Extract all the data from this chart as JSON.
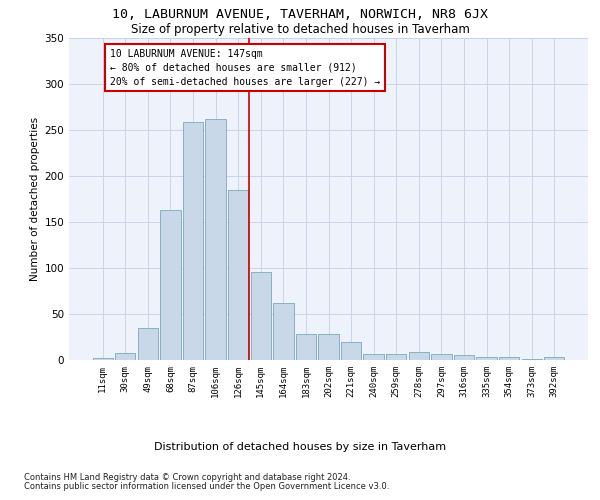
{
  "title_line1": "10, LABURNUM AVENUE, TAVERHAM, NORWICH, NR8 6JX",
  "title_line2": "Size of property relative to detached houses in Taverham",
  "xlabel": "Distribution of detached houses by size in Taverham",
  "ylabel": "Number of detached properties",
  "footnote1": "Contains HM Land Registry data © Crown copyright and database right 2024.",
  "footnote2": "Contains public sector information licensed under the Open Government Licence v3.0.",
  "bar_labels": [
    "11sqm",
    "30sqm",
    "49sqm",
    "68sqm",
    "87sqm",
    "106sqm",
    "126sqm",
    "145sqm",
    "164sqm",
    "183sqm",
    "202sqm",
    "221sqm",
    "240sqm",
    "259sqm",
    "278sqm",
    "297sqm",
    "316sqm",
    "335sqm",
    "354sqm",
    "373sqm",
    "392sqm"
  ],
  "bar_heights": [
    2,
    8,
    35,
    163,
    258,
    262,
    185,
    95,
    62,
    28,
    28,
    20,
    6,
    6,
    9,
    7,
    5,
    3,
    3,
    1,
    3
  ],
  "bar_color": "#c8d8e8",
  "bar_edge_color": "#7aaabb",
  "grid_color": "#c8d4e8",
  "background_color": "#eef2fa",
  "annotation_line1": "10 LABURNUM AVENUE: 147sqm",
  "annotation_line2": "← 80% of detached houses are smaller (912)",
  "annotation_line3": "20% of semi-detached houses are larger (227) →",
  "ref_line_x": 7,
  "ref_line_color": "#cc0000",
  "annotation_box_color": "#cc0000",
  "ylim": [
    0,
    350
  ],
  "yticks": [
    0,
    50,
    100,
    150,
    200,
    250,
    300,
    350
  ]
}
